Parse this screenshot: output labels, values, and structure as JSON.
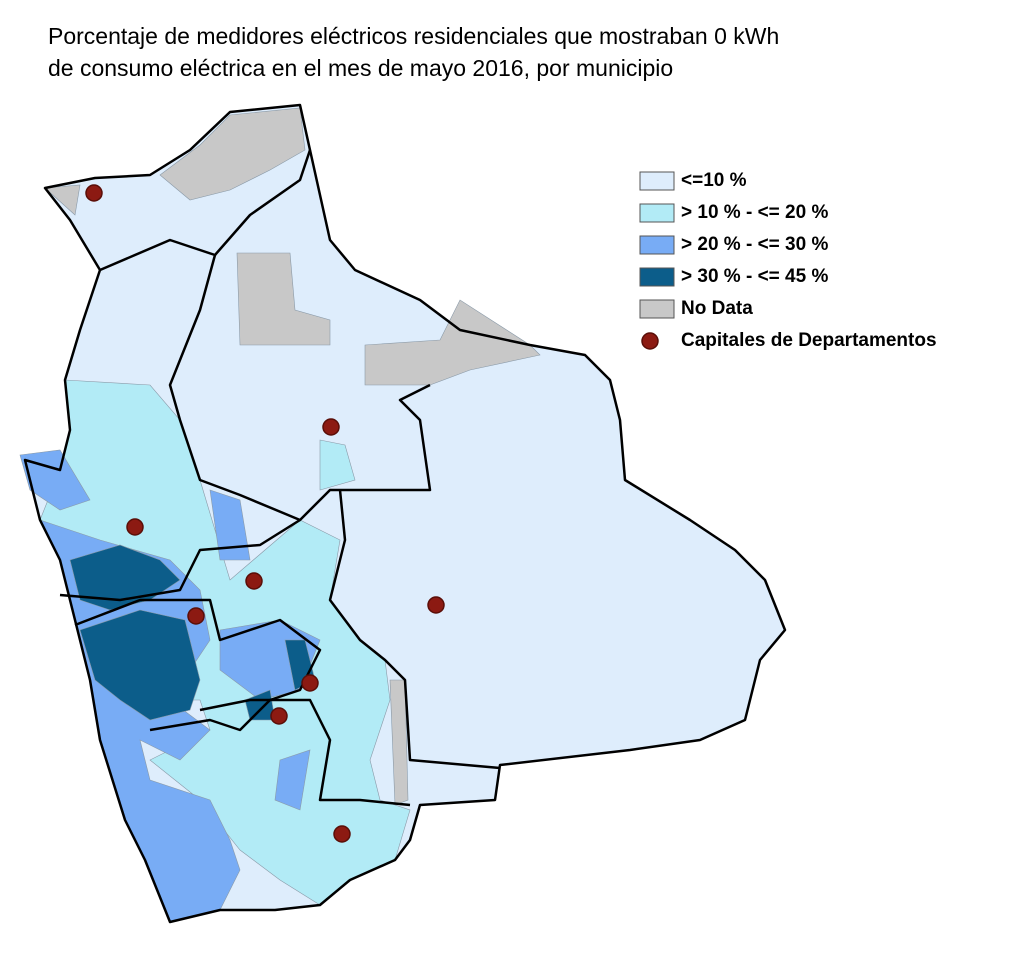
{
  "title": {
    "lines": [
      "Porcentaje de medidores eléctricos residenciales que mostraban 0 kWh",
      "de consumo eléctrica en el mes de mayo 2016, por municipio"
    ]
  },
  "legend": {
    "items": [
      {
        "label": "<=10 %",
        "color": "#deedfc"
      },
      {
        "label": "> 10 % - <= 20 %",
        "color": "#b2ebf6"
      },
      {
        "label": "> 20 % - <= 30 %",
        "color": "#78acf5"
      },
      {
        "label": "> 30 % - <= 45 %",
        "color": "#0c5d8a"
      },
      {
        "label": "No Data",
        "color": "#c8c8c8"
      },
      {
        "label": "Capitales de Departamentos",
        "color": "#8c1a12"
      }
    ]
  }
}
